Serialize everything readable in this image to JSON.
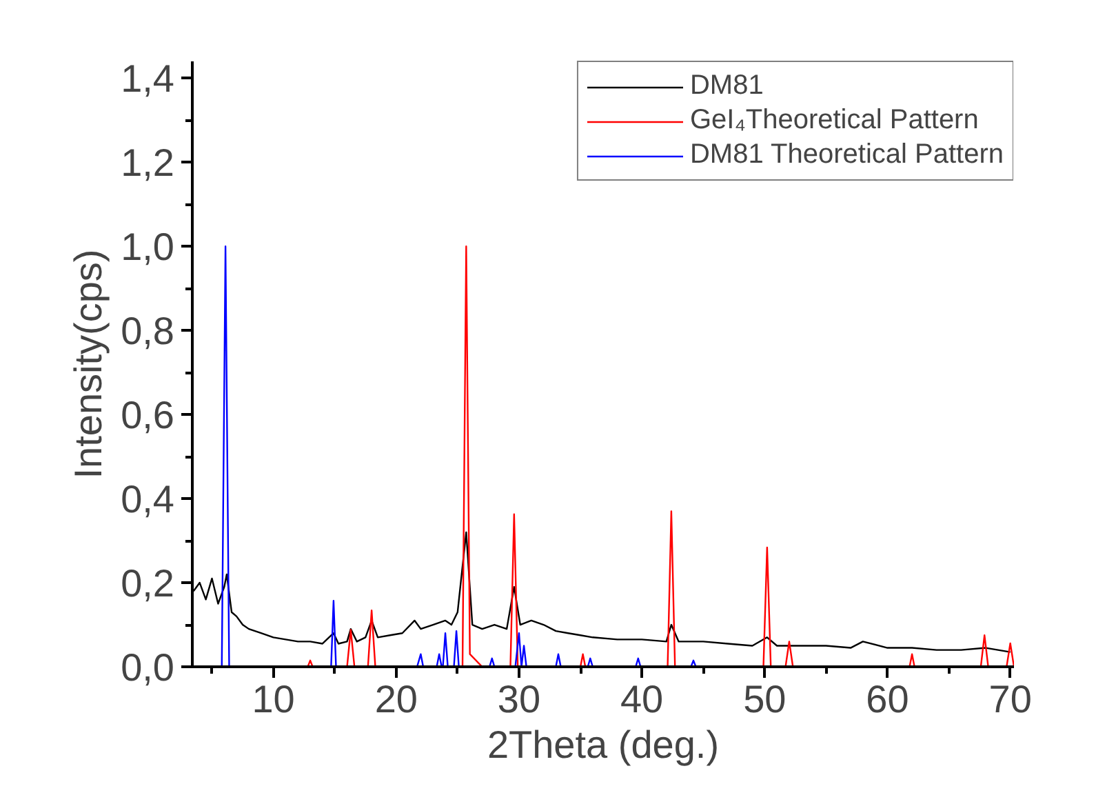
{
  "chart_data": {
    "type": "line",
    "xlabel": "2Theta (deg.)",
    "ylabel": "Intensity(cps)",
    "xlim": [
      3.4,
      70.3
    ],
    "ylim": [
      0,
      1.44
    ],
    "xticks": [
      10,
      20,
      30,
      40,
      50,
      60,
      70
    ],
    "yticks": [
      {
        "value": 0,
        "label": "0,0"
      },
      {
        "value": 0.2,
        "label": "0,2"
      },
      {
        "value": 0.4,
        "label": "0,4"
      },
      {
        "value": 0.6,
        "label": "0,6"
      },
      {
        "value": 0.8,
        "label": "0,8"
      },
      {
        "value": 1.0,
        "label": "1,0"
      },
      {
        "value": 1.2,
        "label": "1,2"
      },
      {
        "value": 1.4,
        "label": "1,4"
      }
    ],
    "grid": false,
    "legend": "top right",
    "marker": "none",
    "line_style": "solid",
    "series": [
      {
        "name": "DM81",
        "color": "#000000",
        "x": [
          3.5,
          4,
          4.5,
          5,
          5.5,
          6,
          6.2,
          6.6,
          7,
          7.5,
          8,
          9,
          10,
          11,
          12,
          13,
          14,
          14.9,
          15.3,
          16,
          16.3,
          16.8,
          17.5,
          18,
          18.5,
          19.5,
          20.5,
          21.5,
          22,
          23,
          24,
          24.5,
          25,
          25.7,
          26.2,
          27,
          28,
          29,
          29.6,
          30.1,
          31,
          32,
          33,
          34,
          35,
          36,
          38,
          40,
          42,
          42.4,
          43,
          45,
          47,
          49,
          50.2,
          51,
          53,
          55,
          57,
          58,
          60,
          62,
          64,
          66,
          68,
          70
        ],
        "values": [
          0.18,
          0.2,
          0.16,
          0.21,
          0.15,
          0.19,
          0.22,
          0.13,
          0.12,
          0.1,
          0.09,
          0.08,
          0.07,
          0.065,
          0.06,
          0.06,
          0.055,
          0.08,
          0.055,
          0.06,
          0.09,
          0.06,
          0.07,
          0.11,
          0.07,
          0.075,
          0.08,
          0.11,
          0.09,
          0.1,
          0.11,
          0.1,
          0.13,
          0.32,
          0.1,
          0.09,
          0.1,
          0.09,
          0.19,
          0.1,
          0.11,
          0.1,
          0.085,
          0.08,
          0.075,
          0.07,
          0.065,
          0.065,
          0.06,
          0.1,
          0.06,
          0.06,
          0.055,
          0.05,
          0.07,
          0.05,
          0.05,
          0.05,
          0.045,
          0.06,
          0.045,
          0.045,
          0.04,
          0.04,
          0.045,
          0.035
        ]
      },
      {
        "name": "GeI₄Theoretical Pattern",
        "color": "#ff0000",
        "x": [
          3.4,
          12.8,
          13,
          13.2,
          16,
          16.3,
          16.6,
          17.7,
          18,
          18.3,
          25.4,
          25.7,
          26,
          27,
          29.3,
          29.6,
          29.9,
          35,
          35.2,
          35.4,
          42.1,
          42.4,
          42.7,
          49.9,
          50.2,
          50.5,
          51.7,
          52,
          52.3,
          61.8,
          62,
          62.2,
          67.6,
          67.9,
          68.2,
          69.7,
          70,
          70.3
        ],
        "values": [
          0,
          0,
          0.015,
          0,
          0,
          0.088,
          0,
          0,
          0.134,
          0,
          0,
          1.0,
          0.03,
          0,
          0,
          0.363,
          0,
          0,
          0.03,
          0,
          0,
          0.37,
          0,
          0,
          0.284,
          0,
          0,
          0.06,
          0,
          0,
          0.03,
          0,
          0,
          0.075,
          0,
          0,
          0.056,
          0
        ]
      },
      {
        "name": "DM81 Theoretical Pattern",
        "color": "#0000ff",
        "x": [
          3.4,
          5.8,
          6.1,
          6.4,
          14.7,
          14.9,
          15.1,
          21.7,
          22,
          22.2,
          23.3,
          23.5,
          23.7,
          23.8,
          24,
          24.2,
          24.7,
          24.9,
          25.1,
          27.6,
          27.8,
          28,
          29.7,
          30,
          30.2,
          30.4,
          30.6,
          33,
          33.2,
          33.4,
          35.6,
          35.8,
          36,
          39.5,
          39.7,
          39.9,
          44,
          44.2,
          44.4,
          70.3
        ],
        "values": [
          0,
          0,
          1.0,
          0,
          0,
          0.157,
          0,
          0,
          0.03,
          0,
          0,
          0.03,
          0,
          0,
          0.08,
          0,
          0,
          0.085,
          0,
          0,
          0.02,
          0,
          0,
          0.08,
          0,
          0.05,
          0,
          0,
          0.03,
          0,
          0,
          0.02,
          0,
          0,
          0.02,
          0,
          0,
          0.015,
          0,
          0
        ]
      }
    ]
  }
}
